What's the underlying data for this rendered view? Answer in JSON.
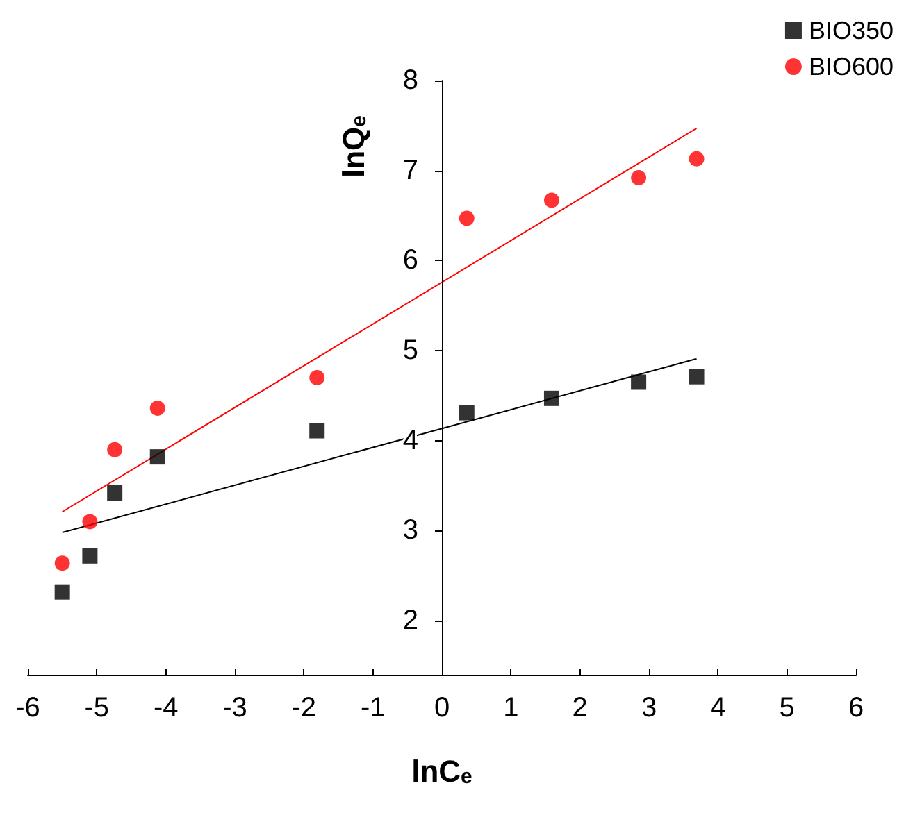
{
  "chart_data": {
    "type": "scatter",
    "xlabel": "lnC$_{e}$",
    "ylabel": "lnQ$_{e}$",
    "xlim": [
      -6,
      6
    ],
    "ylim": [
      1.4,
      8
    ],
    "xticks": [
      -6,
      -5,
      -4,
      -3,
      -2,
      -1,
      0,
      1,
      2,
      3,
      4,
      5,
      6
    ],
    "yticks": [
      2,
      3,
      4,
      5,
      6,
      7,
      8
    ],
    "grid": false,
    "legend": "top right",
    "series": [
      {
        "name": "BIO350",
        "color": "#000000",
        "marker": "square",
        "x": [
          -5.5,
          -5.1,
          -4.74,
          -4.12,
          -1.81,
          0.36,
          1.59,
          2.85,
          3.69
        ],
        "values": [
          2.32,
          2.72,
          3.42,
          3.82,
          4.11,
          4.31,
          4.47,
          4.65,
          4.71
        ]
      },
      {
        "name": "BIO600",
        "color": "#ff0000",
        "marker": "circle",
        "x": [
          -5.5,
          -5.1,
          -4.74,
          -4.12,
          -1.81,
          0.36,
          1.59,
          2.85,
          3.69
        ],
        "values": [
          2.64,
          3.1,
          3.9,
          4.36,
          4.7,
          6.47,
          6.67,
          6.92,
          7.13
        ]
      },
      {
        "type": "line",
        "color": "#000000",
        "marker": "none",
        "x": [
          -5.5,
          3.69
        ],
        "values": [
          2.98,
          4.91
        ]
      },
      {
        "type": "line",
        "color": "#ff0000",
        "marker": "none",
        "x": [
          -5.5,
          3.69
        ],
        "values": [
          3.21,
          7.47
        ]
      }
    ]
  }
}
